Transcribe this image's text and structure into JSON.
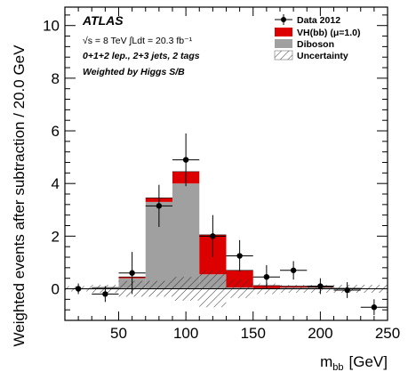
{
  "chart_data": {
    "type": "bar",
    "stacked": true,
    "xlabel": "m",
    "xlabel_sub": "bb",
    "xlabel_unit": "[GeV]",
    "ylabel": "Weighted events after subtraction / 20.0 GeV",
    "xlim": [
      10,
      250
    ],
    "ylim": [
      -1.2,
      10.7
    ],
    "x_ticks": [
      50,
      100,
      150,
      200,
      250
    ],
    "y_ticks": [
      0,
      2,
      4,
      6,
      8,
      10
    ],
    "bins": [
      [
        10,
        30
      ],
      [
        30,
        50
      ],
      [
        50,
        70
      ],
      [
        70,
        90
      ],
      [
        90,
        110
      ],
      [
        110,
        130
      ],
      [
        130,
        150
      ],
      [
        150,
        170
      ],
      [
        170,
        190
      ],
      [
        190,
        210
      ],
      [
        210,
        230
      ],
      [
        230,
        250
      ]
    ],
    "series": [
      {
        "name": "Diboson",
        "color": "#a0a0a0",
        "values": [
          0.0,
          0.05,
          0.4,
          3.3,
          4.0,
          0.55,
          0.05,
          0.02,
          0.05,
          0.05,
          0.02,
          0.0
        ]
      },
      {
        "name": "VH(bb) (μ=1.0)",
        "color": "#dd0000",
        "values": [
          0.0,
          0.0,
          0.05,
          0.15,
          0.45,
          1.5,
          0.65,
          0.1,
          0.05,
          0.02,
          0.0,
          0.0
        ]
      }
    ],
    "data": {
      "name": "Data 2012",
      "x": [
        20,
        40,
        60,
        80,
        100,
        120,
        140,
        160,
        180,
        200,
        220,
        240
      ],
      "y": [
        0.0,
        -0.2,
        0.6,
        3.15,
        4.9,
        2.0,
        1.25,
        0.45,
        0.7,
        0.1,
        -0.05,
        -0.7
      ],
      "err": [
        0.2,
        0.3,
        0.8,
        0.8,
        1.0,
        0.8,
        0.6,
        0.45,
        0.35,
        0.3,
        0.3,
        0.3
      ]
    },
    "uncertainty": {
      "name": "Uncertainty",
      "half_width": [
        0.1,
        0.15,
        0.3,
        0.3,
        0.45,
        0.7,
        0.35,
        0.2,
        0.15,
        0.15,
        0.15,
        0.15
      ]
    },
    "legend_position": "top-right",
    "annotations": {
      "atlas": "ATLAS",
      "line1": "√s = 8 TeV ∫Ldt = 20.3 fb⁻¹",
      "line2": "0+1+2 lep., 2+3 jets, 2 tags",
      "line3": "Weighted by Higgs S/B"
    }
  },
  "legend": {
    "data": "Data 2012",
    "vh": "VH(bb) (μ=1.0)",
    "diboson": "Diboson",
    "uncertainty": "Uncertainty"
  }
}
